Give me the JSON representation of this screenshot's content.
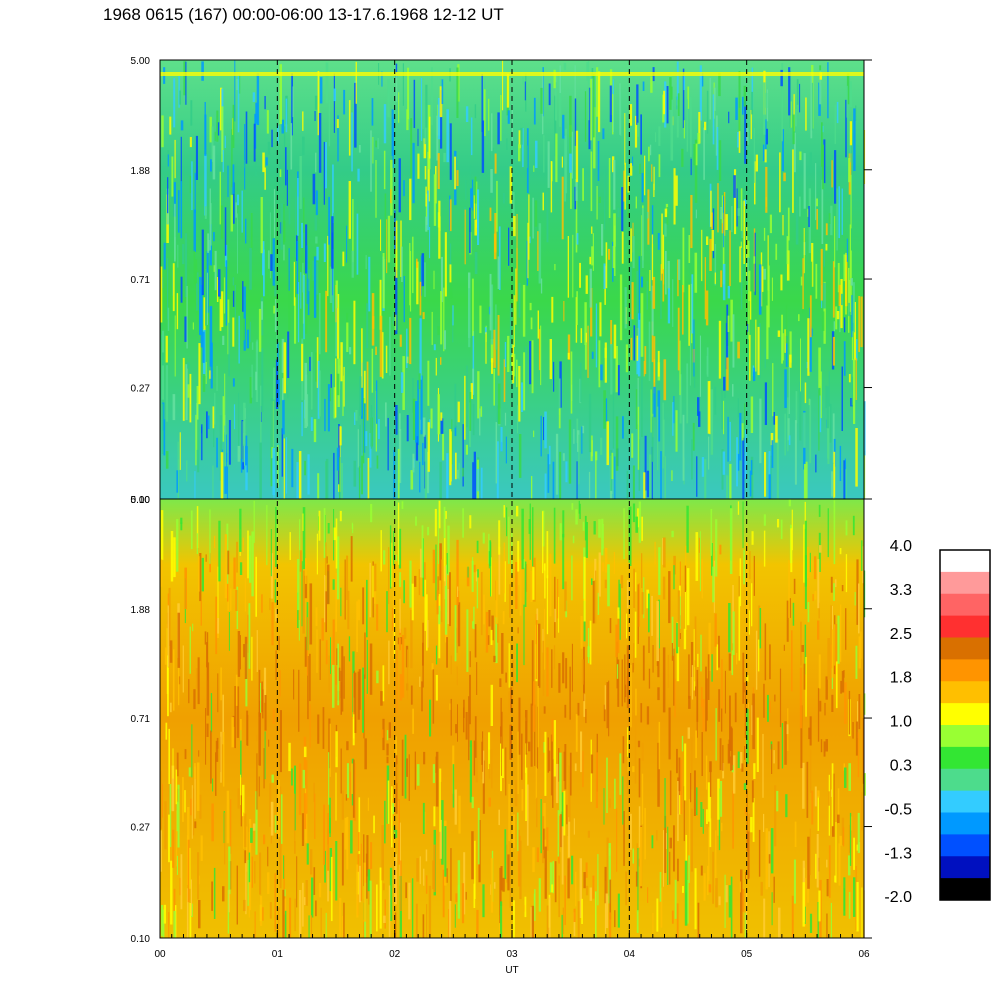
{
  "title": "1968 0615 (167) 00:00-06:00 13-17.6.1968  12-12 UT",
  "chart_data": [
    {
      "type": "heatmap",
      "panel": "top",
      "y_ticks": [
        "5.00",
        "1.88",
        "0.71",
        "0.27",
        "0.10"
      ],
      "ylim": [
        0.1,
        5.0
      ],
      "y_scale": "log",
      "x_range": [
        "00",
        "06"
      ],
      "dashed_hour_lines": [
        "01",
        "02",
        "03",
        "04",
        "05"
      ],
      "dominant_levels": "-0.5 to 1.0 (blue/cyan/green, yellow toward later hours)"
    },
    {
      "type": "heatmap",
      "panel": "bottom",
      "y_ticks": [
        "5.00",
        "1.88",
        "0.71",
        "0.27",
        "0.10"
      ],
      "ylim": [
        0.1,
        5.0
      ],
      "y_scale": "log",
      "x_range": [
        "00",
        "06"
      ],
      "x_ticks": [
        "00",
        "01",
        "02",
        "03",
        "04",
        "05",
        "06"
      ],
      "xlabel": "UT",
      "dashed_hour_lines": [
        "01",
        "02",
        "03",
        "04",
        "05"
      ],
      "dominant_levels": "1.0 to 2.5 (yellow/orange/dark orange)"
    }
  ],
  "colorbar": {
    "labels": [
      "4.0",
      "3.3",
      "2.5",
      "1.8",
      "1.0",
      "0.3",
      "-0.5",
      "-1.3",
      "-2.0"
    ],
    "colors_top_to_bottom": [
      "#ffffff",
      "#ff9a9a",
      "#ff6464",
      "#ff3030",
      "#d97000",
      "#ff9400",
      "#ffbf00",
      "#ffff00",
      "#99ff33",
      "#33e633",
      "#4ddc8c",
      "#33ccff",
      "#0099ff",
      "#0050ff",
      "#0010c0",
      "#000000"
    ]
  }
}
